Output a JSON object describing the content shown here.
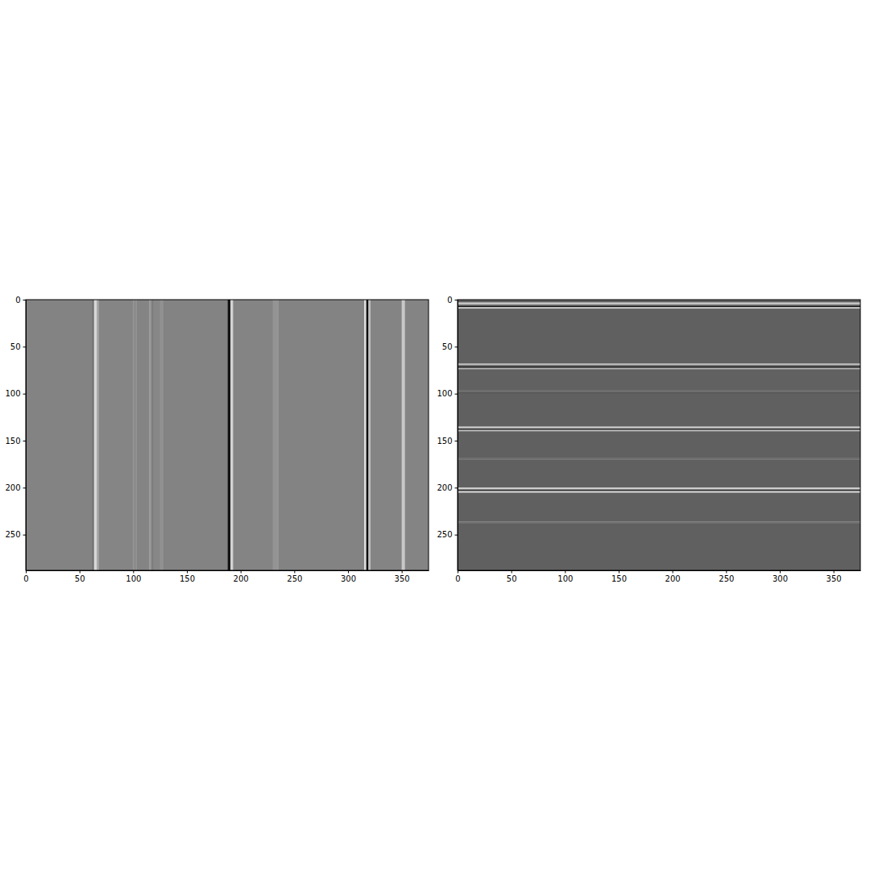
{
  "chart_data": [
    {
      "type": "heatmap",
      "x_edges": [
        0,
        62,
        63.5,
        66,
        68,
        100,
        103,
        115,
        117,
        119,
        125,
        128,
        188,
        190.5,
        193,
        230,
        235,
        315,
        317,
        319,
        321,
        350,
        353,
        375
      ],
      "values": [
        131,
        110,
        215,
        170,
        133,
        140,
        132,
        150,
        125,
        135,
        145,
        131,
        20,
        210,
        132,
        148,
        131,
        220,
        15,
        190,
        132,
        200,
        132
      ],
      "vlim": [
        0,
        255
      ],
      "xlim": [
        0,
        375
      ],
      "ylim": [
        288,
        0
      ],
      "xticks": [
        0,
        50,
        100,
        150,
        200,
        250,
        300,
        350
      ],
      "yticks": [
        0,
        50,
        100,
        150,
        200,
        250
      ]
    },
    {
      "type": "heatmap",
      "y_edges": [
        0,
        3,
        5,
        6.5,
        8,
        9.5,
        68,
        69.5,
        71,
        72.5,
        74,
        96,
        98,
        100,
        135,
        137,
        138.5,
        140,
        168,
        170,
        200,
        202,
        203.5,
        205.5,
        236,
        238,
        288
      ],
      "values": [
        95,
        200,
        120,
        20,
        210,
        96,
        190,
        110,
        30,
        180,
        97,
        110,
        85,
        96,
        200,
        40,
        190,
        96,
        110,
        96,
        210,
        30,
        200,
        96,
        115,
        96
      ],
      "vlim": [
        0,
        255
      ],
      "xlim": [
        0,
        375
      ],
      "ylim": [
        288,
        0
      ],
      "xticks": [
        0,
        50,
        100,
        150,
        200,
        250,
        300,
        350
      ],
      "yticks": [
        0,
        50,
        100,
        150,
        200,
        250
      ]
    }
  ]
}
